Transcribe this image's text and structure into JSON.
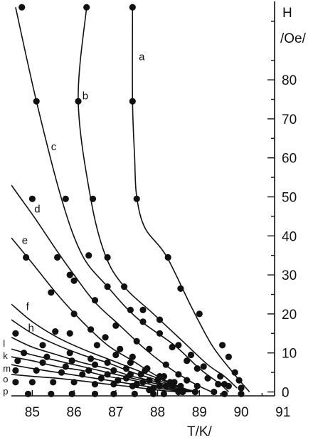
{
  "chart_data": {
    "type": "line",
    "title": "",
    "xlabel": "T/K/",
    "ylabel_line1": "H",
    "ylabel_line2": "/Oe/",
    "xlim": [
      84.5,
      90.8
    ],
    "ylim": [
      -1,
      99
    ],
    "x_ticks": [
      "85",
      "86",
      "87",
      "88",
      "89",
      "90",
      "91"
    ],
    "y_ticks": [
      "0",
      "10",
      "20",
      "30",
      "40",
      "50",
      "60",
      "70",
      "80"
    ],
    "y_minor_ticks": [
      5,
      15,
      25,
      35,
      45,
      55,
      65,
      75,
      85,
      95
    ],
    "grid": false,
    "legend": "none",
    "series": [
      {
        "name": "a",
        "values": [
          [
            87.4,
            98.6
          ],
          [
            87.4,
            74.5
          ],
          [
            87.45,
            60
          ],
          [
            87.5,
            50
          ],
          [
            87.7,
            42
          ],
          [
            88.2,
            35
          ],
          [
            88.8,
            22
          ],
          [
            89.3,
            12
          ],
          [
            89.8,
            5
          ],
          [
            90.2,
            0
          ]
        ],
        "markers": [
          [
            87.4,
            98.6
          ],
          [
            87.4,
            74.5
          ],
          [
            87.5,
            49.5
          ],
          [
            88.25,
            34.5
          ],
          [
            88.55,
            26.5
          ],
          [
            89.0,
            20
          ],
          [
            89.55,
            12
          ],
          [
            89.7,
            9
          ],
          [
            89.85,
            5
          ],
          [
            89.95,
            3
          ],
          [
            90.0,
            1
          ],
          [
            90.0,
            -0.5
          ]
        ]
      },
      {
        "name": "b",
        "values": [
          [
            86.3,
            98.6
          ],
          [
            86.1,
            74.5
          ],
          [
            86.4,
            49.5
          ],
          [
            86.75,
            35
          ],
          [
            87.2,
            27
          ],
          [
            87.9,
            20
          ],
          [
            88.6,
            13
          ],
          [
            89.2,
            7
          ],
          [
            89.6,
            4
          ],
          [
            89.9,
            1
          ]
        ],
        "markers": [
          [
            86.3,
            98.6
          ],
          [
            86.1,
            74.5
          ],
          [
            86.45,
            49.5
          ],
          [
            86.8,
            34.5
          ],
          [
            87.2,
            27
          ],
          [
            87.65,
            21
          ],
          [
            88.05,
            18.5
          ],
          [
            88.5,
            12
          ],
          [
            88.8,
            9.5
          ],
          [
            89.1,
            6.5
          ],
          [
            89.5,
            4
          ],
          [
            89.6,
            2
          ],
          [
            89.7,
            1.5
          ],
          [
            89.6,
            -0.5
          ]
        ]
      },
      {
        "name": "c",
        "values": [
          [
            84.6,
            98.6
          ],
          [
            85.1,
            74.5
          ],
          [
            85.7,
            49.5
          ],
          [
            86.2,
            35
          ],
          [
            86.8,
            27
          ],
          [
            87.5,
            19
          ],
          [
            88.4,
            12
          ],
          [
            89.0,
            6
          ],
          [
            89.5,
            2
          ],
          [
            89.7,
            0
          ]
        ],
        "markers": [
          [
            84.75,
            98.6
          ],
          [
            85.1,
            74.5
          ],
          [
            85.8,
            49.5
          ],
          [
            86.35,
            35
          ],
          [
            86.8,
            27
          ],
          [
            87.35,
            21
          ],
          [
            87.65,
            18
          ],
          [
            88.05,
            15
          ],
          [
            88.35,
            11.5
          ],
          [
            88.7,
            8
          ],
          [
            88.95,
            6
          ],
          [
            89.2,
            3.5
          ],
          [
            89.45,
            2
          ],
          [
            89.35,
            0
          ]
        ]
      },
      {
        "name": "d",
        "values": [
          [
            84.5,
            53
          ],
          [
            84.7,
            50
          ],
          [
            85.1,
            44
          ],
          [
            85.6,
            36
          ],
          [
            86.0,
            30
          ],
          [
            86.5,
            23
          ],
          [
            87.1,
            17
          ],
          [
            87.7,
            11
          ],
          [
            88.3,
            6
          ],
          [
            88.9,
            2
          ],
          [
            89.3,
            0
          ]
        ],
        "markers": [
          [
            85.0,
            49.5
          ],
          [
            85.6,
            34.5
          ],
          [
            85.9,
            30
          ],
          [
            86.0,
            28.5
          ],
          [
            86.5,
            23.5
          ],
          [
            87.0,
            17
          ],
          [
            87.5,
            13
          ],
          [
            87.8,
            11
          ],
          [
            88.2,
            7
          ],
          [
            88.5,
            4.5
          ],
          [
            88.7,
            3
          ],
          [
            88.95,
            1.5
          ],
          [
            88.9,
            0
          ]
        ]
      },
      {
        "name": "e",
        "values": [
          [
            84.5,
            39.5
          ],
          [
            85.0,
            33
          ],
          [
            85.6,
            25
          ],
          [
            86.2,
            18
          ],
          [
            86.8,
            12
          ],
          [
            87.4,
            8
          ],
          [
            88.0,
            4
          ],
          [
            88.6,
            1
          ],
          [
            89.0,
            0
          ]
        ],
        "markers": [
          [
            84.85,
            34.5
          ],
          [
            85.45,
            25.5
          ],
          [
            86.0,
            20
          ],
          [
            86.4,
            16
          ],
          [
            86.75,
            14
          ],
          [
            87.1,
            11
          ],
          [
            87.4,
            9
          ],
          [
            87.75,
            6
          ],
          [
            88.05,
            4
          ],
          [
            88.3,
            2.5
          ],
          [
            88.55,
            1.5
          ],
          [
            88.6,
            0
          ]
        ]
      },
      {
        "name": "f",
        "values": [
          [
            84.5,
            22.5
          ],
          [
            85.0,
            18
          ],
          [
            85.6,
            14
          ],
          [
            86.2,
            11
          ],
          [
            86.8,
            8.5
          ],
          [
            87.4,
            6
          ],
          [
            88.0,
            3.5
          ],
          [
            88.6,
            1
          ],
          [
            88.9,
            0
          ]
        ],
        "markers": [
          [
            85.55,
            15.5
          ],
          [
            85.9,
            15
          ],
          [
            86.55,
            12
          ],
          [
            87.0,
            9.5
          ],
          [
            87.35,
            7.5
          ],
          [
            87.7,
            5.5
          ],
          [
            88.15,
            4
          ],
          [
            88.4,
            2.5
          ],
          [
            88.55,
            0.5
          ]
        ]
      },
      {
        "name": "h",
        "values": [
          [
            84.5,
            18.5
          ],
          [
            85.0,
            15
          ],
          [
            85.6,
            12
          ],
          [
            86.2,
            9.5
          ],
          [
            86.8,
            7.5
          ],
          [
            87.4,
            5
          ],
          [
            88.0,
            3
          ],
          [
            88.6,
            0.8
          ],
          [
            88.85,
            0
          ]
        ],
        "markers": [
          [
            84.6,
            15
          ],
          [
            85.25,
            12
          ],
          [
            85.9,
            10
          ],
          [
            86.4,
            8.5
          ],
          [
            86.8,
            7.5
          ],
          [
            87.25,
            6
          ],
          [
            87.6,
            4.5
          ],
          [
            88.0,
            3
          ],
          [
            88.35,
            1.5
          ],
          [
            88.5,
            0
          ]
        ]
      },
      {
        "name": "l",
        "values": [
          [
            84.5,
            14
          ],
          [
            85.0,
            11.5
          ],
          [
            85.6,
            9.5
          ],
          [
            86.2,
            7.5
          ],
          [
            86.8,
            6
          ],
          [
            87.4,
            4
          ],
          [
            88.0,
            2.5
          ],
          [
            88.6,
            0.5
          ],
          [
            88.8,
            0
          ]
        ],
        "markers": [
          [
            84.8,
            10
          ],
          [
            85.35,
            9
          ],
          [
            85.95,
            8
          ],
          [
            86.5,
            7
          ],
          [
            86.95,
            5.5
          ],
          [
            87.35,
            4.5
          ],
          [
            87.8,
            3
          ],
          [
            88.2,
            1.5
          ]
        ]
      },
      {
        "name": "k",
        "values": [
          [
            84.5,
            11
          ],
          [
            85.0,
            9.5
          ],
          [
            85.6,
            8
          ],
          [
            86.2,
            6.5
          ],
          [
            86.8,
            5
          ],
          [
            87.4,
            3.5
          ],
          [
            88.0,
            2
          ],
          [
            88.6,
            0.3
          ],
          [
            88.75,
            0
          ]
        ],
        "markers": [
          [
            84.65,
            8
          ],
          [
            85.25,
            7.5
          ],
          [
            85.8,
            6.5
          ],
          [
            86.35,
            5.5
          ],
          [
            86.8,
            4.5
          ],
          [
            87.25,
            3.5
          ],
          [
            87.65,
            2.5
          ],
          [
            88.05,
            1.5
          ]
        ]
      },
      {
        "name": "m",
        "values": [
          [
            84.5,
            9
          ],
          [
            85.0,
            8
          ],
          [
            85.6,
            6.5
          ],
          [
            86.2,
            5.5
          ],
          [
            86.8,
            4
          ],
          [
            87.4,
            3
          ],
          [
            88.0,
            1.5
          ],
          [
            88.7,
            0
          ]
        ],
        "markers": [
          [
            84.6,
            5.5
          ],
          [
            85.1,
            5.5
          ],
          [
            85.7,
            5
          ],
          [
            86.2,
            4.5
          ],
          [
            86.65,
            3.5
          ],
          [
            87.05,
            3
          ],
          [
            87.5,
            2
          ],
          [
            87.9,
            1
          ]
        ]
      },
      {
        "name": "o",
        "values": [
          [
            84.5,
            7
          ],
          [
            85.0,
            6
          ],
          [
            85.6,
            5
          ],
          [
            86.2,
            4
          ],
          [
            86.8,
            3
          ],
          [
            87.4,
            2
          ],
          [
            88.0,
            1
          ],
          [
            88.6,
            0
          ]
        ],
        "markers": [
          [
            84.6,
            2.5
          ],
          [
            85.0,
            2.5
          ],
          [
            85.5,
            2.5
          ],
          [
            86.0,
            2.5
          ],
          [
            86.5,
            2
          ],
          [
            86.95,
            2
          ],
          [
            87.4,
            1.5
          ],
          [
            87.8,
            0.5
          ]
        ]
      },
      {
        "name": "p",
        "values": [
          [
            84.5,
            4.5
          ],
          [
            85.0,
            4
          ],
          [
            85.6,
            3.5
          ],
          [
            86.2,
            2.8
          ],
          [
            86.8,
            2
          ],
          [
            87.4,
            1.3
          ],
          [
            88.0,
            0.5
          ],
          [
            88.5,
            0
          ]
        ],
        "markers": [
          [
            84.9,
            -0.5
          ],
          [
            85.45,
            -0.5
          ],
          [
            85.95,
            -0.5
          ],
          [
            86.5,
            -0.5
          ],
          [
            86.95,
            -0.5
          ],
          [
            87.45,
            -0.5
          ],
          [
            87.9,
            -0.5
          ],
          [
            88.15,
            -0.5
          ]
        ]
      }
    ]
  }
}
